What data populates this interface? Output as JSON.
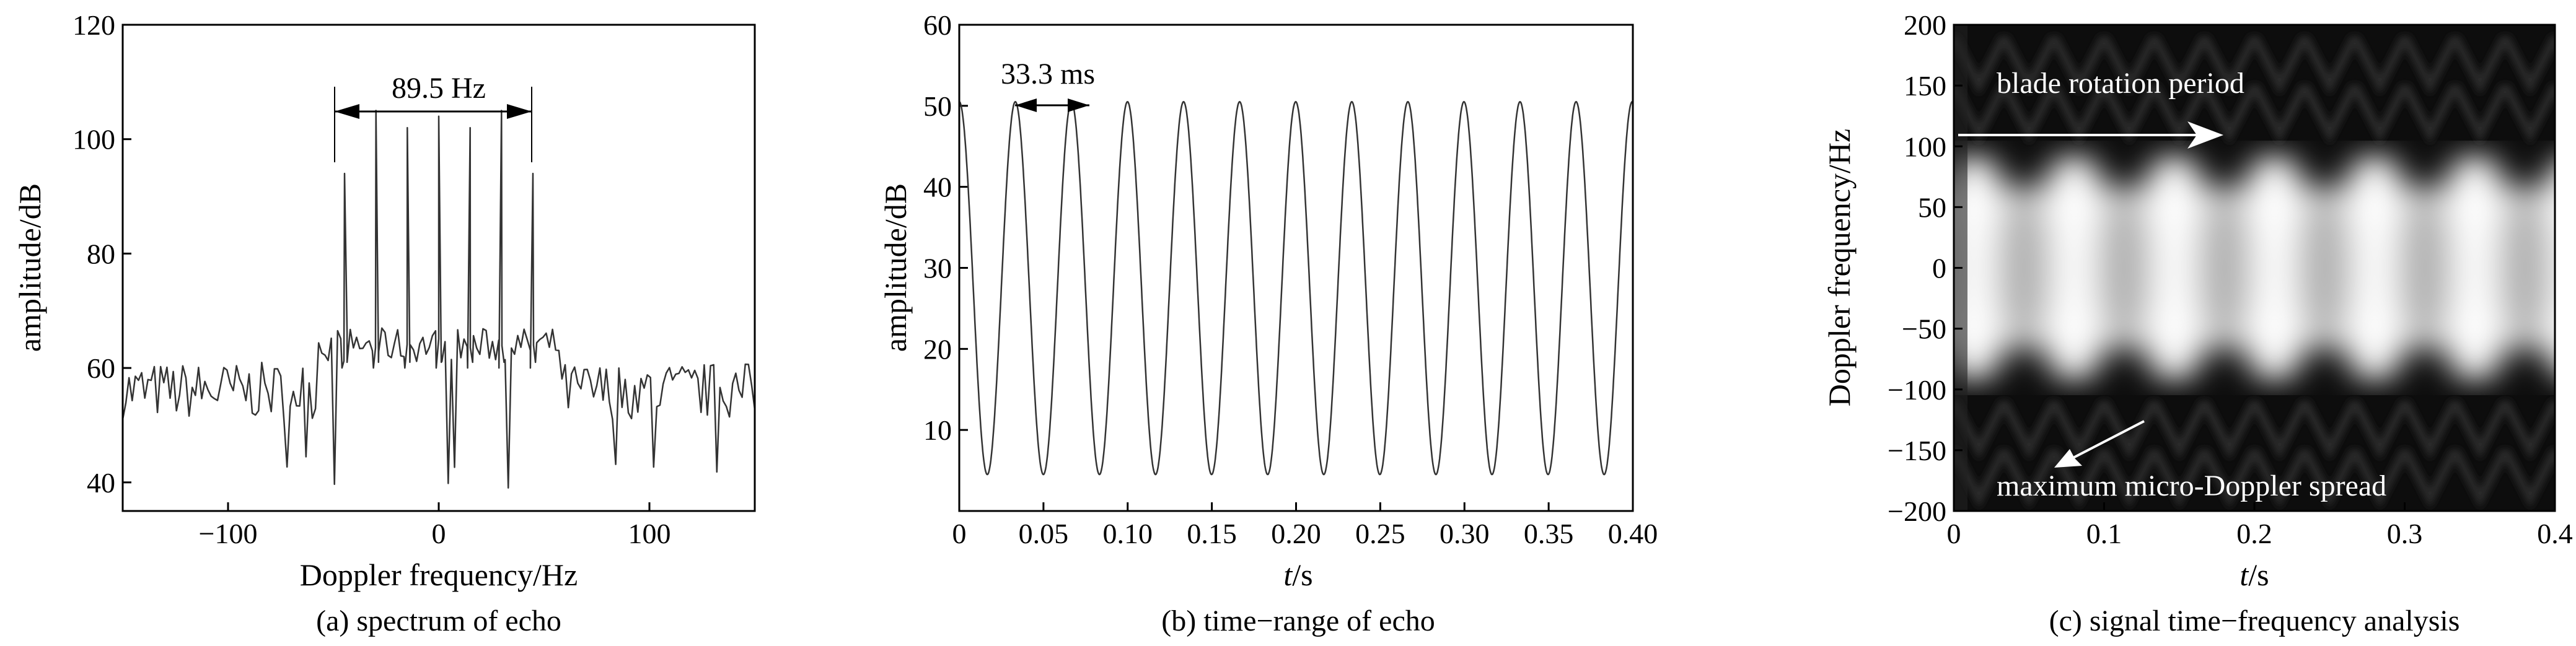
{
  "chart_data": [
    {
      "type": "line",
      "caption": "(a) spectrum of echo",
      "xlabel": "Doppler frequency/Hz",
      "ylabel": "amplitude/dB",
      "xlim": [
        -150,
        150
      ],
      "ylim": [
        35,
        120
      ],
      "x_ticks": [
        -100,
        0,
        100
      ],
      "x_tick_labels": [
        "−100",
        "0",
        "100"
      ],
      "y_ticks": [
        40,
        60,
        80,
        100,
        120
      ],
      "annotation": "89.5 Hz",
      "annotation_span": [
        -50,
        45
      ],
      "series": [
        {
          "peaks": [
            {
              "x": -44.7,
              "y": 94
            },
            {
              "x": -29.8,
              "y": 105
            },
            {
              "x": -14.9,
              "y": 102
            },
            {
              "x": 0,
              "y": 104
            },
            {
              "x": 14.9,
              "y": 102
            },
            {
              "x": 29.8,
              "y": 105
            },
            {
              "x": 44.7,
              "y": 94
            }
          ],
          "plateau_level": 64,
          "plateau_range": [
            -58,
            58
          ],
          "noise_floor": 56,
          "noise_min": 39
        }
      ]
    },
    {
      "type": "line",
      "caption": "(b) time−range of echo",
      "xlabel_italic": "t",
      "xlabel_rest": "/s",
      "ylabel": "amplitude/dB",
      "xlim": [
        0,
        0.4
      ],
      "ylim": [
        0,
        60
      ],
      "x_ticks": [
        0,
        0.05,
        0.1,
        0.15,
        0.2,
        0.25,
        0.3,
        0.35,
        0.4
      ],
      "x_tick_labels": [
        "0",
        "0.05",
        "0.10",
        "0.15",
        "0.20",
        "0.25",
        "0.30",
        "0.35",
        "0.40"
      ],
      "y_ticks": [
        10,
        20,
        30,
        40,
        50,
        60
      ],
      "annotation": "33.3 ms",
      "annotation_span": [
        0.0333,
        0.0667
      ],
      "series": [
        {
          "period": 0.0333,
          "max": 50.5,
          "min": 4.5,
          "first_peak": 0
        }
      ]
    },
    {
      "type": "heatmap",
      "caption": "(c) signal time−frequency analysis",
      "xlabel_italic": "t",
      "xlabel_rest": "/s",
      "ylabel": "Doppler frequency/Hz",
      "xlim": [
        0,
        0.4
      ],
      "ylim": [
        -200,
        200
      ],
      "x_ticks": [
        0,
        0.1,
        0.2,
        0.3,
        0.4
      ],
      "x_tick_labels": [
        "0",
        "0.1",
        "0.2",
        "0.3",
        "0.4"
      ],
      "y_ticks": [
        -200,
        -150,
        -100,
        -50,
        0,
        50,
        100,
        150,
        200
      ],
      "y_tick_labels": [
        "−200",
        "−150",
        "−100",
        "−50",
        "0",
        "50",
        "100",
        "150",
        "200"
      ],
      "annotations": [
        "blade rotation period",
        "maximum micro-Doppler spread"
      ],
      "period": 0.0667,
      "bright_band": [
        -95,
        95
      ]
    }
  ],
  "colors": {
    "line": "#333333",
    "axis": "#000000",
    "heat_dark": "#0d0d0d",
    "heat_bright": "#ffffff"
  }
}
